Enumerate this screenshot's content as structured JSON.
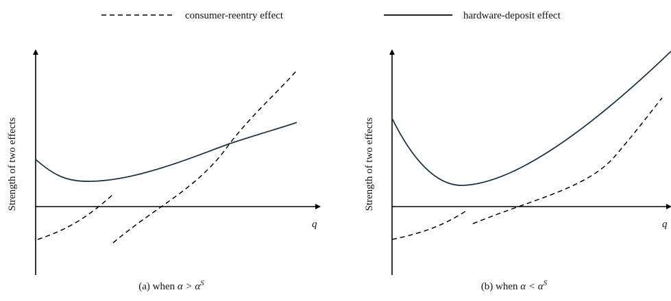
{
  "legend": [
    {
      "label": "consumer-reentry effect"
    },
    {
      "label": "hardware-deposit effect"
    }
  ],
  "panels": [
    {
      "y_axis_label": "Strength of two effects",
      "x_axis_label": "q",
      "caption": {
        "prefix": "(a) when ",
        "math": "α > α",
        "superscript": "S"
      }
    },
    {
      "y_axis_label": "Strength of two effects",
      "x_axis_label": "q",
      "caption": {
        "prefix": "(b) when ",
        "math": "α < α",
        "superscript": "S"
      }
    }
  ]
}
